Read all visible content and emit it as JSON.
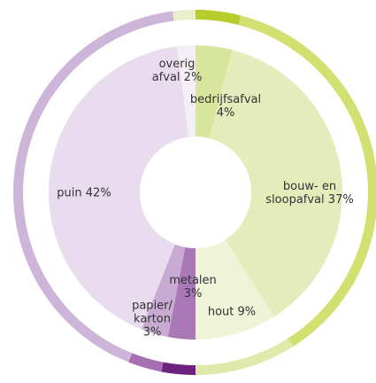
{
  "chart_data": {
    "type": "donut",
    "categories": [
      "bedrijfsafval",
      "bouw- en sloopafval",
      "hout",
      "metalen",
      "papier/ karton",
      "puin",
      "overig afval"
    ],
    "values": [
      4,
      37,
      9,
      3,
      3,
      42,
      2
    ],
    "value_labels": [
      "4%",
      "37%",
      "9%",
      "3%",
      "3%",
      "42%",
      "2%"
    ],
    "colors": [
      "#d8e59c",
      "#e4ecbb",
      "#eff3d8",
      "#a978b6",
      "#c8aad3",
      "#e8dcee",
      "#f3eff5"
    ],
    "outer_colors": [
      "#b7cc2d",
      "#d1e070",
      "#dfe9ab",
      "#6e2280",
      "#a66fb1",
      "#cdb4d9",
      "#e9efcc"
    ]
  }
}
